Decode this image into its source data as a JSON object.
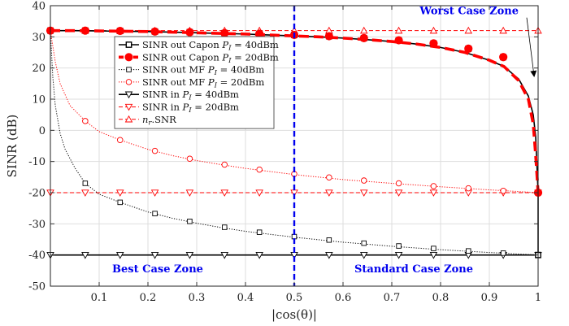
{
  "chart_data": {
    "type": "line",
    "xlabel": "|cos(θ)|",
    "ylabel": "SINR (dB)",
    "xlim": [
      0,
      1
    ],
    "ylim": [
      -50,
      40
    ],
    "xticks": [
      0.1,
      0.2,
      0.3,
      0.4,
      0.5,
      0.6,
      0.7,
      0.8,
      0.9,
      1
    ],
    "xtick_labels": [
      "0.1",
      "0.2",
      "0.3",
      "0.4",
      "0.5",
      "0.6",
      "0.7",
      "0.8",
      "0.9",
      "1"
    ],
    "yticks": [
      -50,
      -40,
      -30,
      -20,
      -10,
      0,
      10,
      20,
      30,
      40
    ],
    "ytick_labels": [
      "-50",
      "-40",
      "-30",
      "-20",
      "-10",
      "0",
      "10",
      "20",
      "30",
      "40"
    ],
    "grid": true,
    "legend_position": "upper-left-center",
    "series": [
      {
        "name": "SINR out Capon P_I = 40dBm",
        "legend_label": "SINR out Capon",
        "legend_sub": "P",
        "legend_subscript": "I",
        "legend_suffix": "= 40dBm",
        "color": "#000000",
        "style": "solid",
        "marker": "square",
        "x": [
          0,
          0.05,
          0.1,
          0.15,
          0.2,
          0.25,
          0.3,
          0.35,
          0.4,
          0.45,
          0.5,
          0.55,
          0.6,
          0.65,
          0.7,
          0.75,
          0.8,
          0.85,
          0.9,
          0.93,
          0.96,
          0.98,
          0.99,
          0.995,
          1,
          1
        ],
        "y": [
          32,
          32,
          31.9,
          31.8,
          31.7,
          31.5,
          31.3,
          31.1,
          30.9,
          30.6,
          30.3,
          30,
          29.6,
          29.1,
          28.5,
          27.7,
          26.6,
          25,
          22.5,
          20.5,
          16.5,
          11,
          5,
          -2,
          -20,
          -40
        ],
        "marker_x": [
          0,
          0.0714,
          0.1429,
          0.2143,
          0.2857,
          0.3571,
          0.4286,
          0.5,
          0.5714,
          0.6429,
          0.7143,
          0.7857,
          0.8571,
          0.9286,
          1
        ],
        "marker_y": [
          32,
          32,
          31.9,
          31.7,
          31.5,
          31.2,
          31,
          30.6,
          30.2,
          29.6,
          28.9,
          27.9,
          26.2,
          23.5,
          -40
        ]
      },
      {
        "name": "SINR out Capon P_I = 20dBm",
        "legend_label": "SINR out Capon",
        "legend_sub": "P",
        "legend_subscript": "I",
        "legend_suffix": "= 20dBm",
        "color": "#ff0000",
        "style": "dashed-thick",
        "marker": "filled-circle",
        "x": [
          0,
          0.05,
          0.1,
          0.15,
          0.2,
          0.25,
          0.3,
          0.35,
          0.4,
          0.45,
          0.5,
          0.55,
          0.6,
          0.65,
          0.7,
          0.75,
          0.8,
          0.85,
          0.9,
          0.93,
          0.96,
          0.98,
          0.99,
          0.995,
          1
        ],
        "y": [
          32,
          32,
          31.9,
          31.8,
          31.7,
          31.5,
          31.3,
          31.1,
          30.9,
          30.6,
          30.3,
          30,
          29.6,
          29.1,
          28.5,
          27.7,
          26.6,
          25,
          22.5,
          20.5,
          16,
          10,
          2,
          -8,
          -20
        ],
        "marker_x": [
          0,
          0.0714,
          0.1429,
          0.2143,
          0.2857,
          0.3571,
          0.4286,
          0.5,
          0.5714,
          0.6429,
          0.7143,
          0.7857,
          0.8571,
          0.9286,
          1
        ],
        "marker_y": [
          32,
          32,
          31.9,
          31.7,
          31.5,
          31.2,
          31,
          30.6,
          30.2,
          29.6,
          28.9,
          27.9,
          26.2,
          23.5,
          -20
        ]
      },
      {
        "name": "SINR out MF P_I = 40dBm",
        "legend_label": "SINR out MF",
        "legend_sub": "P",
        "legend_subscript": "I",
        "legend_suffix": "= 40dBm",
        "color": "#000000",
        "style": "dotted",
        "marker": "open-square",
        "x": [
          0,
          0.005,
          0.01,
          0.02,
          0.03,
          0.05,
          0.0714,
          0.1,
          0.1429,
          0.2,
          0.25,
          0.3,
          0.35,
          0.4,
          0.5,
          0.6,
          0.7,
          0.8,
          0.9,
          1
        ],
        "y": [
          32,
          17,
          8,
          -1,
          -6,
          -12,
          -17,
          -20.5,
          -23.1,
          -26.2,
          -28.2,
          -29.8,
          -31.2,
          -32.4,
          -34.3,
          -35.9,
          -37.2,
          -38.3,
          -39.2,
          -40
        ],
        "marker_x": [
          0.0714,
          0.1429,
          0.2143,
          0.2857,
          0.3571,
          0.4286,
          0.5,
          0.5714,
          0.6429,
          0.7143,
          0.7857,
          0.8571,
          0.9286,
          1
        ],
        "marker_y": [
          -17,
          -23.1,
          -26.7,
          -29.2,
          -31.1,
          -32.7,
          -34.1,
          -35.2,
          -36.2,
          -37.1,
          -37.9,
          -38.7,
          -39.4,
          -40
        ]
      },
      {
        "name": "SINR out MF P_I = 20dBm",
        "legend_label": "SINR out MF",
        "legend_sub": "P",
        "legend_subscript": "I",
        "legend_suffix": "= 20dBm",
        "color": "#ff0000",
        "style": "dotted",
        "marker": "open-circle",
        "x": [
          0,
          0.01,
          0.02,
          0.04,
          0.0714,
          0.1,
          0.1429,
          0.2,
          0.25,
          0.3,
          0.35,
          0.4,
          0.5,
          0.6,
          0.7,
          0.8,
          0.9,
          1
        ],
        "y": [
          32,
          22,
          15,
          8,
          3,
          -0.4,
          -3.1,
          -6.1,
          -8.1,
          -9.7,
          -11,
          -12.2,
          -14.2,
          -15.8,
          -17,
          -18.1,
          -19.1,
          -20
        ],
        "marker_x": [
          0.0714,
          0.1429,
          0.2143,
          0.2857,
          0.3571,
          0.4286,
          0.5,
          0.5714,
          0.6429,
          0.7143,
          0.7857,
          0.8571,
          0.9286,
          1
        ],
        "marker_y": [
          3,
          -3.1,
          -6.6,
          -9.1,
          -11,
          -12.6,
          -14,
          -15.1,
          -16.1,
          -17,
          -17.9,
          -18.6,
          -19.4,
          -20
        ]
      },
      {
        "name": "SINR in P_I = 40dBm",
        "legend_label": "SINR in",
        "legend_sub": "P",
        "legend_subscript": "I",
        "legend_suffix": "= 40dBm",
        "color": "#000000",
        "style": "solid",
        "marker": "triangle-down",
        "x": [
          0,
          1
        ],
        "y": [
          -40,
          -40
        ],
        "marker_x": [
          0,
          0.0714,
          0.1429,
          0.2143,
          0.2857,
          0.3571,
          0.4286,
          0.5,
          0.5714,
          0.6429,
          0.7143,
          0.7857,
          0.8571,
          0.9286,
          1
        ],
        "marker_y": [
          -40,
          -40,
          -40,
          -40,
          -40,
          -40,
          -40,
          -40,
          -40,
          -40,
          -40,
          -40,
          -40,
          -40,
          -40
        ]
      },
      {
        "name": "SINR in P_I = 20dBm",
        "legend_label": "SINR in",
        "legend_sub": "P",
        "legend_subscript": "I",
        "legend_suffix": "= 20dBm",
        "color": "#ff0000",
        "style": "dashed",
        "marker": "triangle-down",
        "x": [
          0,
          1
        ],
        "y": [
          -20,
          -20
        ],
        "marker_x": [
          0,
          0.0714,
          0.1429,
          0.2143,
          0.2857,
          0.3571,
          0.4286,
          0.5,
          0.5714,
          0.6429,
          0.7143,
          0.7857,
          0.8571,
          0.9286,
          1
        ],
        "marker_y": [
          -20,
          -20,
          -20,
          -20,
          -20,
          -20,
          -20,
          -20,
          -20,
          -20,
          -20,
          -20,
          -20,
          -20,
          -20
        ]
      },
      {
        "name": "n_r.SNR",
        "legend_label": "",
        "legend_sub": "n",
        "legend_subscript": "r",
        "legend_suffix": ".SNR",
        "color": "#ff0000",
        "style": "dashed",
        "marker": "triangle-up",
        "x": [
          0,
          1
        ],
        "y": [
          32,
          32
        ],
        "marker_x": [
          0.0714,
          0.1429,
          0.2143,
          0.2857,
          0.3571,
          0.4286,
          0.5,
          0.5714,
          0.6429,
          0.7143,
          0.7857,
          0.8571,
          0.9286,
          1
        ],
        "marker_y": [
          32,
          32,
          32,
          32,
          32,
          32,
          32,
          32,
          32,
          32,
          32,
          32,
          32,
          32
        ]
      }
    ],
    "vertical_line": {
      "x": 0.5,
      "color": "#0000ee",
      "style": "dashed"
    },
    "annotations": [
      {
        "text": "Worst Case Zone",
        "x": 0.96,
        "y": 37.2,
        "color": "#0000ee",
        "arrow_to": [
          0.995,
          16
        ],
        "anchor": "end"
      },
      {
        "text": "Best Case Zone",
        "x": 0.22,
        "y": -45.5,
        "color": "#0000ee",
        "anchor": "middle"
      },
      {
        "text": "Standard Case Zone",
        "x": 0.745,
        "y": -45.5,
        "color": "#0000ee",
        "anchor": "middle"
      }
    ]
  }
}
